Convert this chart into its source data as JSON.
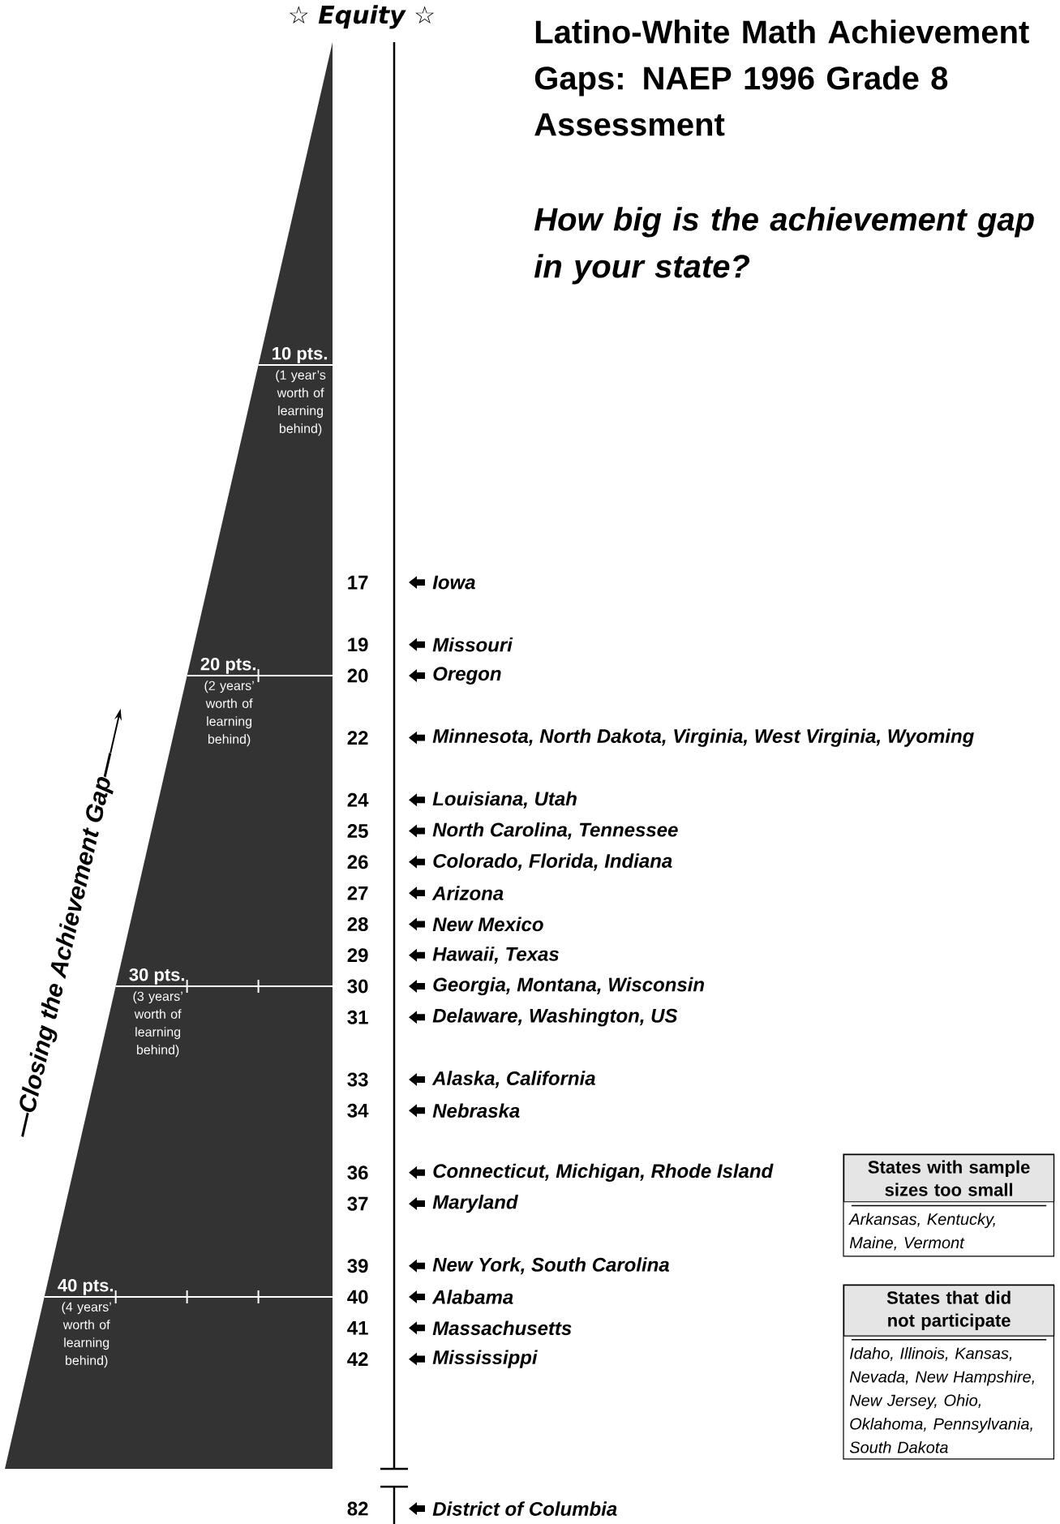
{
  "chart_data": [
    {
      "type": "other",
      "title": "Latino-White Math Achievement Gaps: NAEP 1996 Grade 8 Assessment",
      "subtitle": "How big is the achievement gap in your state?",
      "categories": [
        "Iowa",
        "Missouri",
        "Oregon",
        "Minnesota, North Dakota, Virginia, West Virginia, Wyoming",
        "Louisiana, Utah",
        "North Carolina, Tennessee",
        "Colorado, Florida, Indiana",
        "Arizona",
        "New Mexico",
        "Hawaii, Texas",
        "Georgia, Montana, Wisconsin",
        "Delaware, Washington, US",
        "Alaska, California",
        "Nebraska",
        "Connecticut, Michigan, Rhode Island",
        "Maryland",
        "New York, South Carolina",
        "Alabama",
        "Massachusetts",
        "Mississippi"
      ],
      "values": [
        17,
        19,
        20,
        22,
        24,
        25,
        26,
        27,
        28,
        29,
        30,
        31,
        33,
        34,
        36,
        37,
        39,
        40,
        41,
        42
      ],
      "data_labels": true,
      "annotations": [
        "☆ Equity ☆",
        "—Closing the Achievement Gap—",
        "States with sample sizes too small",
        "Arkansas, Kentucky, Maine, Vermont",
        "States that did not participate",
        "Idaho, Illinois, Kansas, Nevada, New Hampshire, New Jersey, Ohio, Oklahoma, Pennsylvania, South Dakota",
        "10 pts.",
        "(1 year’s worth of learning behind)",
        "20 pts.",
        "(2 years’ worth of learning behind)",
        "30 pts.",
        "(3 years’ worth of learning behind)",
        "40 pts.",
        "(4 years’ worth of learning behind)"
      ]
    },
    {
      "type": "other",
      "categories": [
        "District of Columbia"
      ],
      "values": [
        82
      ],
      "data_labels": true
    }
  ]
}
